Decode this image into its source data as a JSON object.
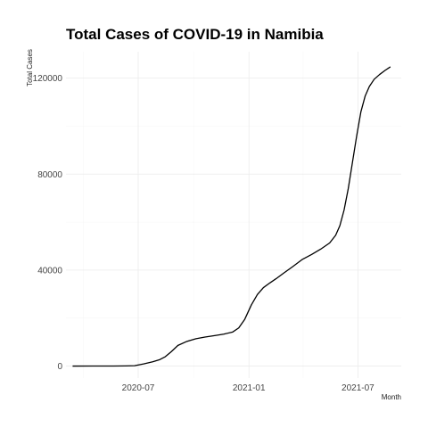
{
  "chart_data": {
    "type": "line",
    "title": "Total Cases of COVID-19 in Namibia",
    "xlabel": "Month",
    "ylabel": "Total Cases",
    "x_ticks": [
      "2020-07",
      "2021-01",
      "2021-07"
    ],
    "y_ticks": [
      "0",
      "40000",
      "80000",
      "120000"
    ],
    "ylim": [
      -5000,
      131000
    ],
    "xlim": [
      "2020-03-03",
      "2021-09-11"
    ],
    "grid": true,
    "series": [
      {
        "color": "#000000",
        "points": [
          [
            "2020-03-14",
            0
          ],
          [
            "2020-04-15",
            16
          ],
          [
            "2020-05-15",
            20
          ],
          [
            "2020-06-10",
            50
          ],
          [
            "2020-06-25",
            150
          ],
          [
            "2020-07-10",
            900
          ],
          [
            "2020-07-25",
            1800
          ],
          [
            "2020-08-05",
            2600
          ],
          [
            "2020-08-15",
            3900
          ],
          [
            "2020-08-25",
            6000
          ],
          [
            "2020-09-05",
            8600
          ],
          [
            "2020-09-20",
            10300
          ],
          [
            "2020-10-05",
            11400
          ],
          [
            "2020-10-20",
            12100
          ],
          [
            "2020-11-05",
            12700
          ],
          [
            "2020-11-20",
            13300
          ],
          [
            "2020-12-05",
            14200
          ],
          [
            "2020-12-15",
            15900
          ],
          [
            "2020-12-25",
            19500
          ],
          [
            "2021-01-05",
            25500
          ],
          [
            "2021-01-15",
            29800
          ],
          [
            "2021-01-25",
            32700
          ],
          [
            "2021-02-05",
            34700
          ],
          [
            "2021-02-15",
            36400
          ],
          [
            "2021-02-28",
            38800
          ],
          [
            "2021-03-15",
            41500
          ],
          [
            "2021-03-31",
            44500
          ],
          [
            "2021-04-15",
            46500
          ],
          [
            "2021-04-30",
            48700
          ],
          [
            "2021-05-15",
            51300
          ],
          [
            "2021-05-25",
            54500
          ],
          [
            "2021-06-01",
            58500
          ],
          [
            "2021-06-08",
            65000
          ],
          [
            "2021-06-15",
            74000
          ],
          [
            "2021-06-22",
            85000
          ],
          [
            "2021-06-29",
            96000
          ],
          [
            "2021-07-06",
            106000
          ],
          [
            "2021-07-13",
            112500
          ],
          [
            "2021-07-20",
            116500
          ],
          [
            "2021-07-28",
            119500
          ],
          [
            "2021-08-06",
            121500
          ],
          [
            "2021-08-15",
            123200
          ],
          [
            "2021-08-24",
            124700
          ]
        ]
      }
    ]
  }
}
